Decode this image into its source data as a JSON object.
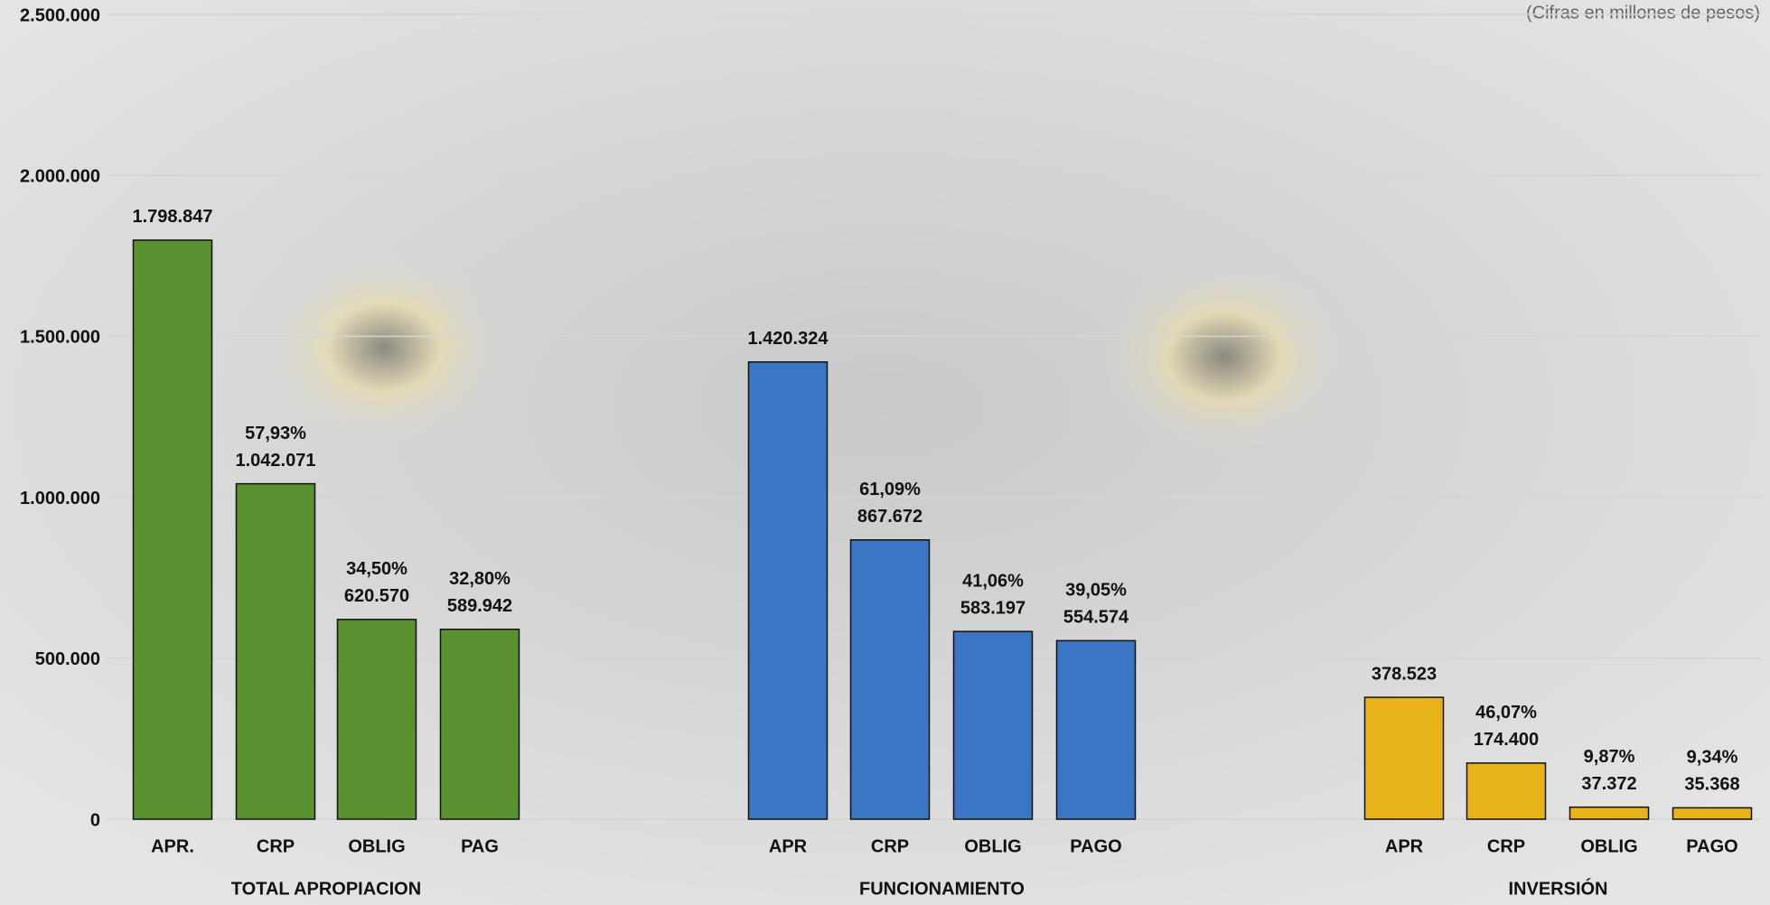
{
  "chart_data": {
    "type": "bar",
    "subtitle": "(Cifras en millones de pesos)",
    "ylim": [
      0,
      2500000
    ],
    "yticks": [
      0,
      {
        "value": 500000,
        "label": "500.000"
      },
      {
        "value": 1000000,
        "label": "1.000.000"
      },
      {
        "value": 1500000,
        "label": "1.500.000"
      },
      {
        "value": 2000000,
        "label": "2.000.000"
      },
      {
        "value": 2500000,
        "label": "2.500.000"
      }
    ],
    "grid": true,
    "groups": [
      {
        "name": "TOTAL APROPIACION",
        "color": "#5a9130",
        "categories": [
          "APR.",
          "CRP",
          "OBLIG",
          "PAG"
        ],
        "values": [
          1798847,
          1042071,
          620570,
          589942
        ],
        "value_labels": [
          "1.798.847",
          "1.042.071",
          "620.570",
          "589.942"
        ],
        "percent_labels": [
          null,
          "57,93%",
          "34,50%",
          "32,80%"
        ]
      },
      {
        "name": "FUNCIONAMIENTO",
        "color": "#3a76c4",
        "categories": [
          "APR",
          "CRP",
          "OBLIG",
          "PAGO"
        ],
        "values": [
          1420324,
          867672,
          583197,
          554574
        ],
        "value_labels": [
          "1.420.324",
          "867.672",
          "583.197",
          "554.574"
        ],
        "percent_labels": [
          null,
          "61,09%",
          "41,06%",
          "39,05%"
        ]
      },
      {
        "name": "INVERSIÓN",
        "color": "#e8b21a",
        "categories": [
          "APR",
          "CRP",
          "OBLIG",
          "PAGO"
        ],
        "values": [
          378523,
          174400,
          37372,
          35368
        ],
        "value_labels": [
          "378.523",
          "174.400",
          "37.372",
          "35.368"
        ],
        "percent_labels": [
          null,
          "46,07%",
          "9,87%",
          "9,34%"
        ]
      }
    ]
  }
}
